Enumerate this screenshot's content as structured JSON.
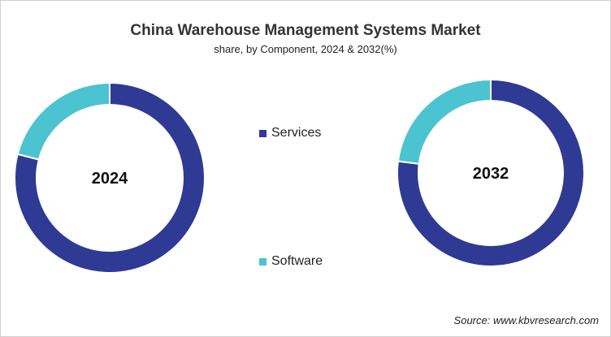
{
  "chart_data": {
    "type": "pie",
    "variant": "donut",
    "title": "China Warehouse Management Systems Market",
    "subtitle": "share, by Component, 2024 & 2032(%)",
    "legend": [
      {
        "name": "Services",
        "color": "#2E3A94"
      },
      {
        "name": "Software",
        "color": "#4CC3D0"
      }
    ],
    "charts": [
      {
        "label": "2024",
        "slices": [
          {
            "name": "Software",
            "value": 21
          },
          {
            "name": "Services",
            "value": 79
          }
        ]
      },
      {
        "label": "2032",
        "slices": [
          {
            "name": "Software",
            "value": 23
          },
          {
            "name": "Services",
            "value": 77
          }
        ]
      }
    ],
    "legend_position": "center"
  },
  "source": "Source: www.kbvresearch.com"
}
